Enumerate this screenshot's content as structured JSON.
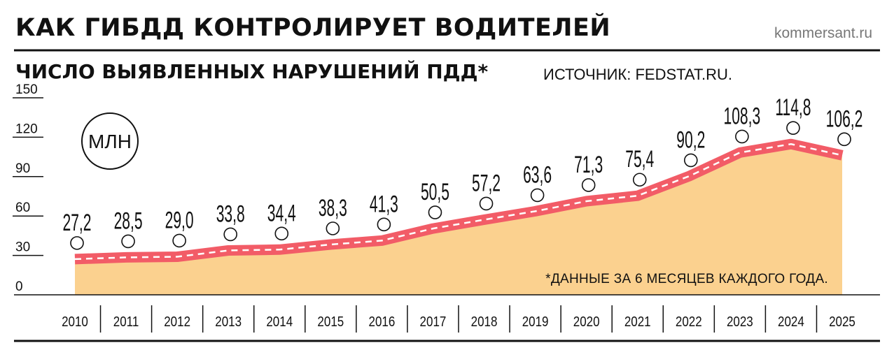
{
  "header": {
    "title": "КАК ГИБДД КОНТРОЛИРУЕТ ВОДИТЕЛЕЙ",
    "site": "kommersant.ru",
    "subtitle": "ЧИСЛО ВЫЯВЛЕННЫХ НАРУШЕНИЙ ПДД*",
    "source": "ИСТОЧНИК: FEDSTAT.RU."
  },
  "colors": {
    "area": "#fbd18f",
    "road": "#f25c67",
    "dash": "#ffffff",
    "axis": "#111111"
  },
  "chart_data": {
    "type": "area",
    "unit": "МЛН",
    "note": "*ДАННЫЕ ЗА 6 МЕСЯЦЕВ КАЖДОГО ГОДА.",
    "categories": [
      "2010",
      "2011",
      "2012",
      "2013",
      "2014",
      "2015",
      "2016",
      "2017",
      "2018",
      "2019",
      "2020",
      "2021",
      "2022",
      "2023",
      "2024",
      "2025"
    ],
    "values": [
      27.2,
      28.5,
      29.0,
      33.8,
      34.4,
      38.3,
      41.3,
      50.5,
      57.2,
      63.6,
      71.3,
      75.4,
      90.2,
      108.3,
      114.8,
      106.2
    ],
    "value_labels": [
      "27,2",
      "28,5",
      "29,0",
      "33,8",
      "34,4",
      "38,3",
      "41,3",
      "50,5",
      "57,2",
      "63,6",
      "71,3",
      "75,4",
      "90,2",
      "108,3",
      "114,8",
      "106,2"
    ],
    "yticks": [
      "0",
      "30",
      "60",
      "90",
      "120",
      "150"
    ],
    "ylim": [
      0,
      150
    ],
    "grid": false,
    "legend": "none"
  }
}
